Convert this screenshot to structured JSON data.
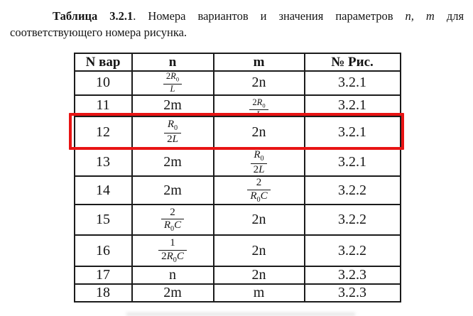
{
  "title": {
    "bold": "Таблица 3.2.1",
    "after_bold": ". Номера вариантов и значения параметров",
    "params": "n, m",
    "line1_end": "для",
    "line2": "соответствующего номера рисунка."
  },
  "table": {
    "headers": [
      "N вар",
      "n",
      "m",
      "№ Рис."
    ],
    "rows": [
      {
        "variant": "10",
        "n": {
          "type": "frac",
          "num": "2R_0",
          "den": "L"
        },
        "m": {
          "type": "text",
          "value": "2n"
        },
        "fig": "3.2.1",
        "highlighted": false
      },
      {
        "variant": "11",
        "n": {
          "type": "text",
          "value": "2m"
        },
        "m": {
          "type": "frac",
          "num": "2R_0",
          "den": "L"
        },
        "fig": "3.2.1",
        "highlighted": false
      },
      {
        "variant": "12",
        "n": {
          "type": "frac",
          "num": "R_0",
          "den": "2L"
        },
        "m": {
          "type": "text",
          "value": "2n"
        },
        "fig": "3.2.1",
        "highlighted": true
      },
      {
        "variant": "13",
        "n": {
          "type": "text",
          "value": "2m"
        },
        "m": {
          "type": "frac",
          "num": "R_0",
          "den": "2L"
        },
        "fig": "3.2.1",
        "highlighted": false
      },
      {
        "variant": "14",
        "n": {
          "type": "text",
          "value": "2m"
        },
        "m": {
          "type": "frac",
          "num": "2",
          "den": "R_0C"
        },
        "fig": "3.2.2",
        "highlighted": false
      },
      {
        "variant": "15",
        "n": {
          "type": "frac",
          "num": "2",
          "den": "R_0C"
        },
        "m": {
          "type": "text",
          "value": "2n"
        },
        "fig": "3.2.2",
        "highlighted": false
      },
      {
        "variant": "16",
        "n": {
          "type": "frac",
          "num": "1",
          "den": "2R_0C"
        },
        "m": {
          "type": "text",
          "value": "2n"
        },
        "fig": "3.2.2",
        "highlighted": false
      },
      {
        "variant": "17",
        "n": {
          "type": "text",
          "value": "n"
        },
        "m": {
          "type": "text",
          "value": "2n"
        },
        "fig": "3.2.3",
        "highlighted": false
      },
      {
        "variant": "18",
        "n": {
          "type": "text",
          "value": "2m"
        },
        "m": {
          "type": "text",
          "value": "m"
        },
        "fig": "3.2.3",
        "highlighted": false
      }
    ],
    "highlight_color": "#e81414"
  }
}
